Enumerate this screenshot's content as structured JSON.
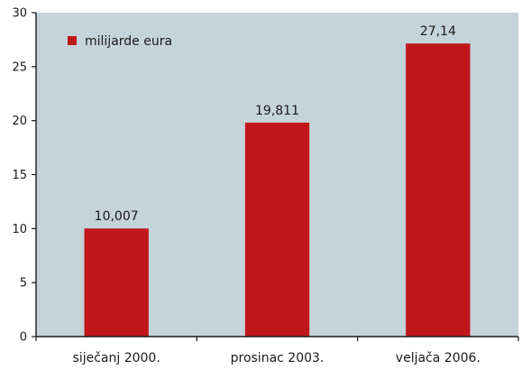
{
  "colors": {
    "plot_background": "#c5d3da",
    "bar": "#c0171b",
    "axis": "#1a1a1a",
    "grid": "none"
  },
  "chart_data": {
    "type": "bar",
    "title": "",
    "xlabel": "",
    "ylabel": "",
    "categories": [
      "siječanj 2000.",
      "prosinac 2003.",
      "veljača 2006."
    ],
    "series": [
      {
        "name": "milijarde eura",
        "values": [
          10.007,
          19.811,
          27.14
        ]
      }
    ],
    "data_labels": [
      "10,007",
      "19,811",
      "27,14"
    ],
    "ylim": [
      0,
      30
    ],
    "yticks": [
      0,
      5,
      10,
      15,
      20,
      25,
      30
    ],
    "grid": false,
    "legend": {
      "position": "top-left",
      "entries": [
        "milijarde eura"
      ]
    }
  }
}
